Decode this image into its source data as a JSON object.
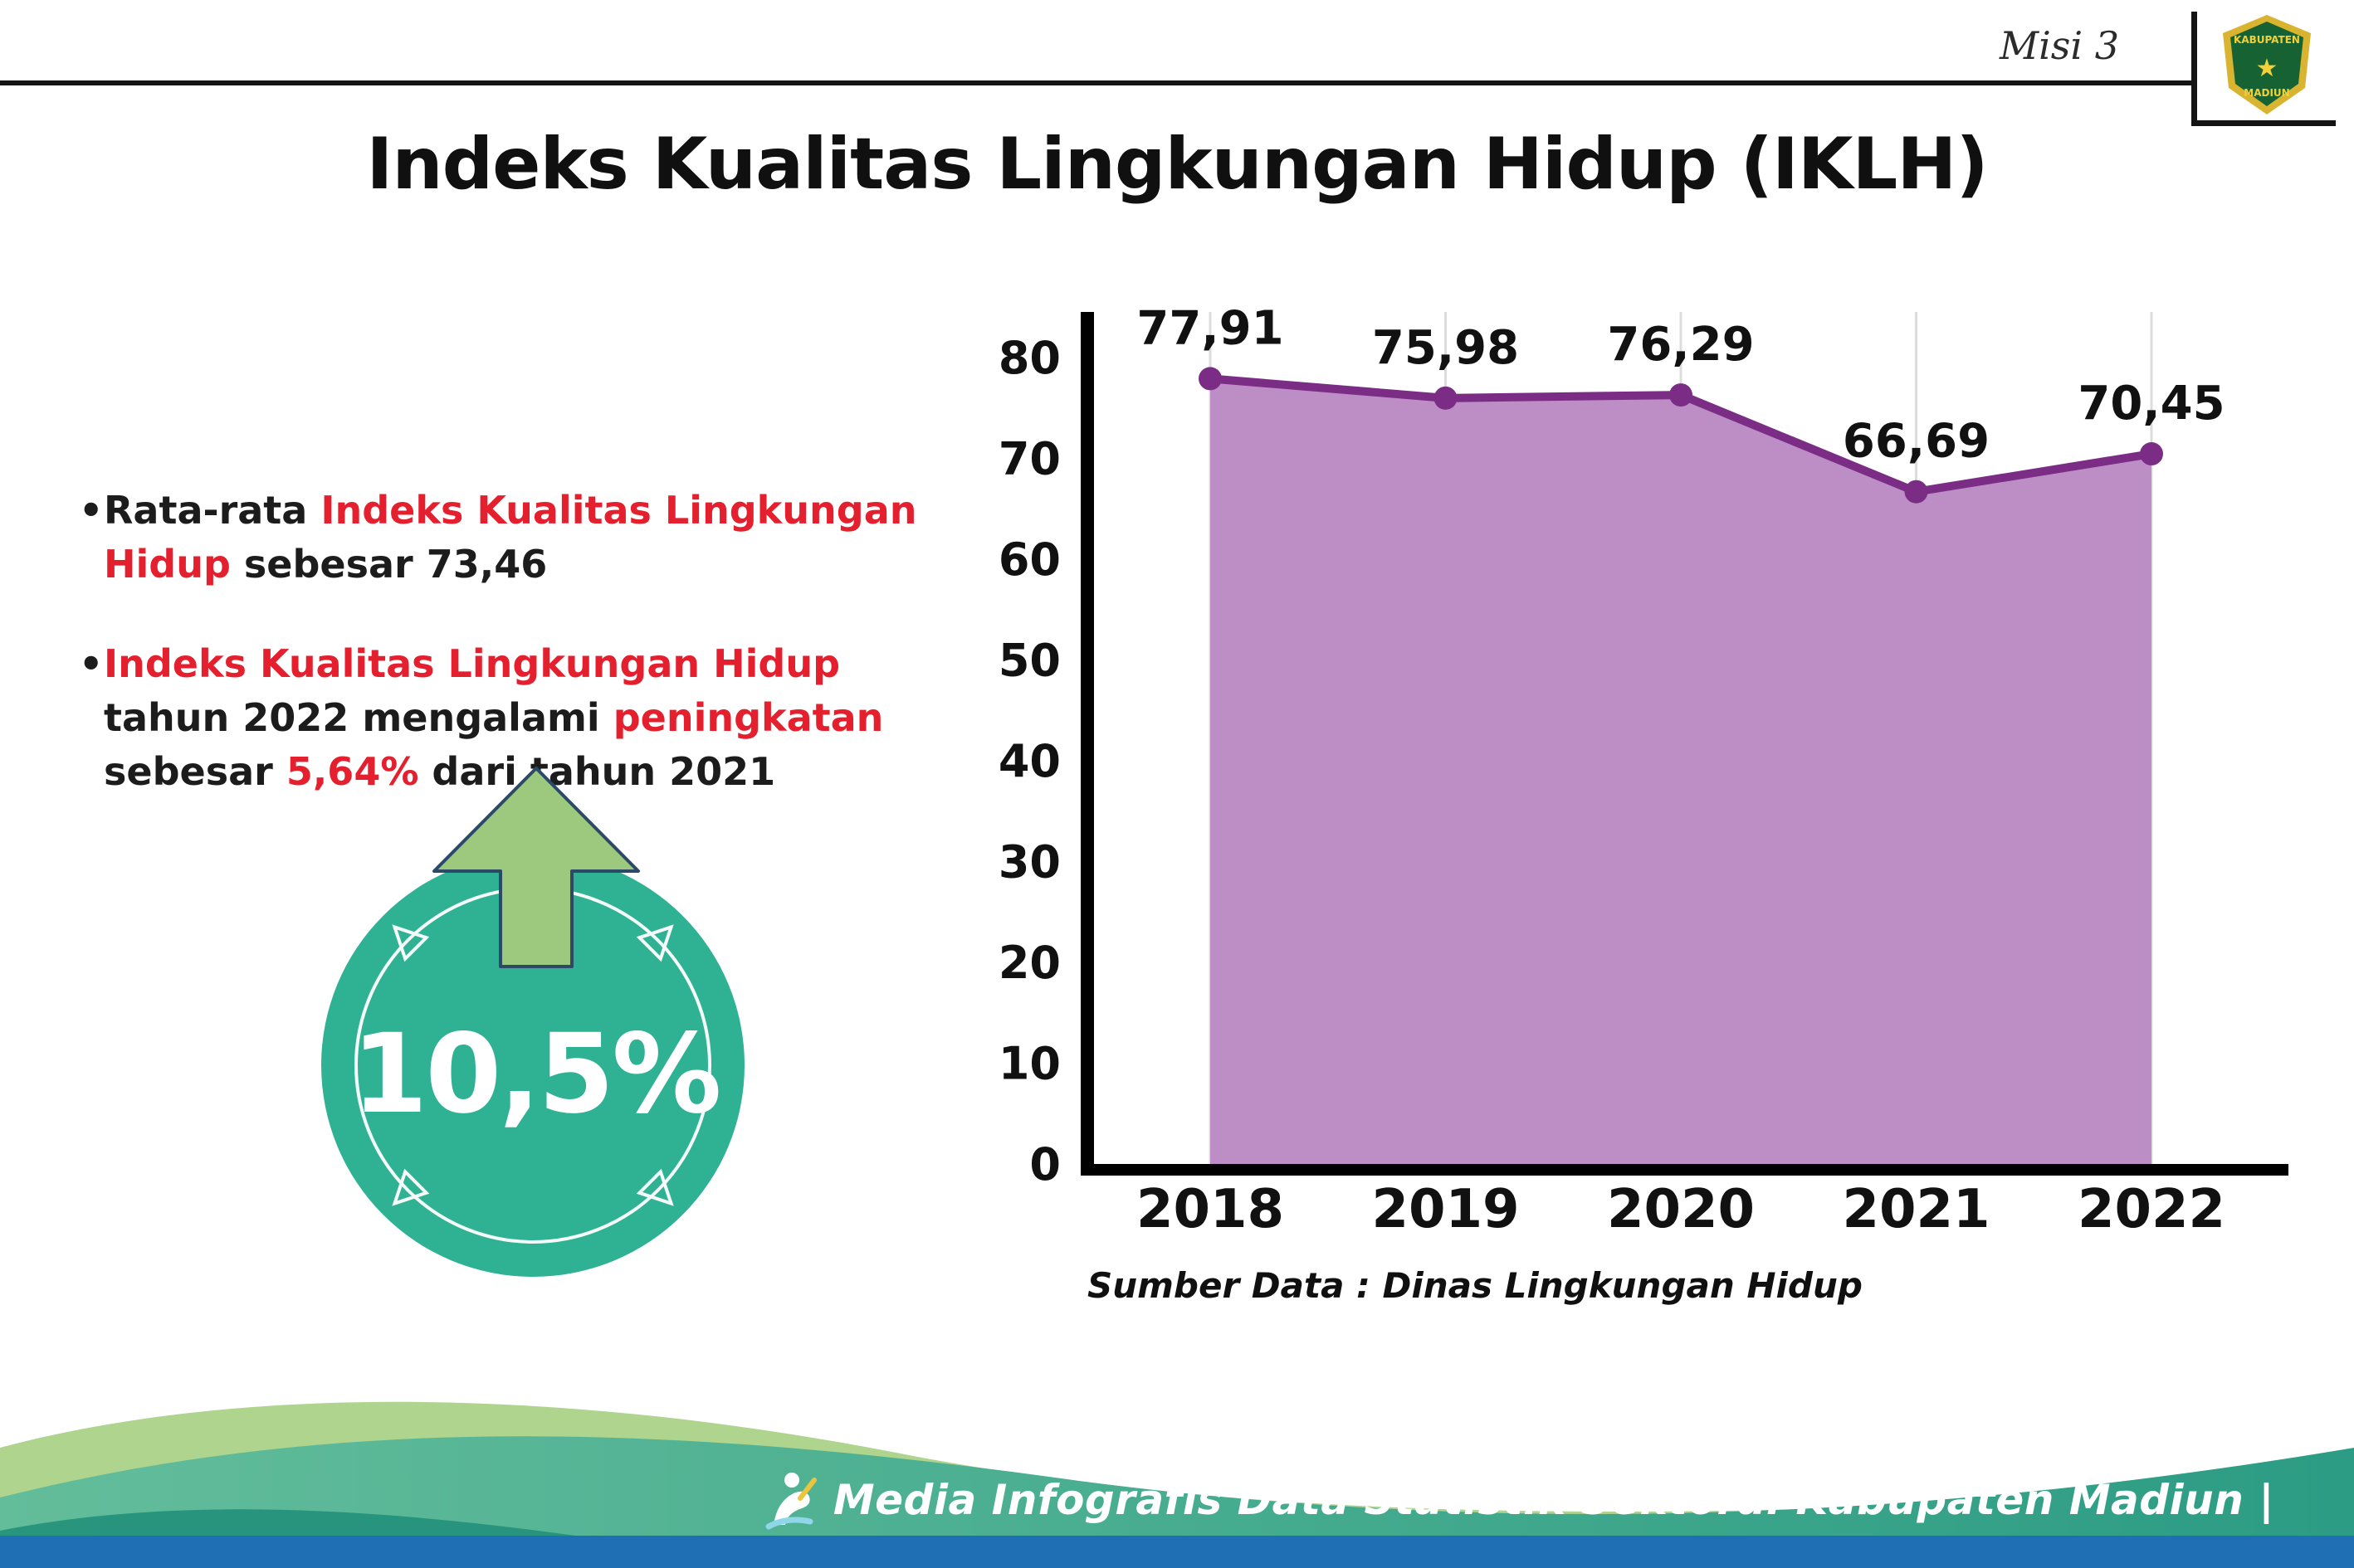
{
  "meta": {
    "misi": "Misi 3"
  },
  "logo": {
    "name": "kabupaten-madiun-crest",
    "top_text": "KABUPATEN",
    "bottom_text": "MADIUN"
  },
  "title": "Indeks Kualitas Lingkungan Hidup (IKLH)",
  "bullets": [
    {
      "segments": [
        {
          "text": "Rata-rata ",
          "color": "black"
        },
        {
          "text": "Indeks Kualitas Lingkungan Hidup",
          "color": "red"
        },
        {
          "text": " sebesar 73,46",
          "color": "black"
        }
      ]
    },
    {
      "segments": [
        {
          "text": "Indeks Kualitas Lingkungan Hidup",
          "color": "red"
        },
        {
          "text": " tahun 2022 mengalami ",
          "color": "black"
        },
        {
          "text": "peningkatan",
          "color": "red"
        },
        {
          "text": " sebesar ",
          "color": "black"
        },
        {
          "text": "5,64%",
          "color": "red"
        },
        {
          "text": " dari tahun 2021",
          "color": "black"
        }
      ]
    }
  ],
  "badge": {
    "value": "10,5%",
    "icon": "arrow-up-icon"
  },
  "chart_data": {
    "type": "area",
    "categories": [
      "2018",
      "2019",
      "2020",
      "2021",
      "2022"
    ],
    "values": [
      77.91,
      75.98,
      76.29,
      66.69,
      70.45
    ],
    "value_labels": [
      "77,91",
      "75,98",
      "76,29",
      "66,69",
      "70,45"
    ],
    "ylim": [
      0,
      80
    ],
    "y_ticks": [
      0,
      10,
      20,
      30,
      40,
      50,
      60,
      70,
      80
    ],
    "xlabel": "",
    "ylabel": "",
    "grid": "vertical-light",
    "legend": "none",
    "source": "Sumber Data : Dinas Lingkungan Hidup",
    "line_color": "#7b2d86",
    "fill_color": "#bd8ec6",
    "marker_color": "#7b2d86"
  },
  "footer": {
    "text": "Media Infografis Data Statistik Sektoral Kabupaten Madiun |"
  },
  "colors": {
    "red_accent": "#e5202e",
    "teal_badge": "#2fb294",
    "arrow_green": "#9dc97e",
    "footer_blue": "#1e6fb3",
    "footer_teal": "#2c9c84",
    "footer_light_green": "#aed48e"
  }
}
